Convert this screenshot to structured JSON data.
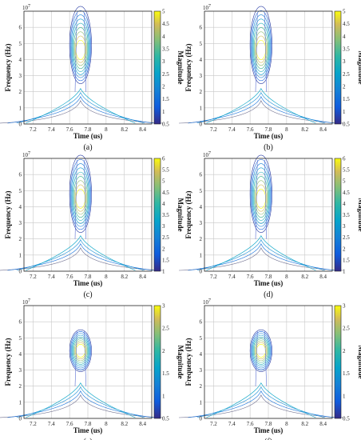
{
  "chart_data": [
    {
      "type": "contour",
      "panel": "(a)",
      "xlabel": "Time (us)",
      "ylabel": "Frequency (Hz)",
      "y_exponent": "10",
      "y_exponent_power": "7",
      "colorbar_label": "Magnitude",
      "x_ticks": [
        "7.2",
        "7.4",
        "7.6",
        "7.8",
        "8",
        "8.2",
        "8.4"
      ],
      "y_ticks": [
        "0",
        "1",
        "2",
        "3",
        "4",
        "5",
        "6"
      ],
      "xlim": [
        7.1,
        8.5
      ],
      "ylim": [
        0,
        7
      ],
      "cbar_ticks": [
        "0.5",
        "1",
        "1.5",
        "2",
        "2.5",
        "3",
        "3.5",
        "4",
        "4.5",
        "5"
      ],
      "cbar_range": [
        0.5,
        5
      ],
      "peak": {
        "t": 7.72,
        "f": 4.6,
        "magnitude": 5
      },
      "grid": true
    },
    {
      "type": "contour",
      "panel": "(b)",
      "xlabel": "Time (us)",
      "ylabel": "Frequency (Hz)",
      "y_exponent": "10",
      "y_exponent_power": "7",
      "colorbar_label": "Magnitude",
      "x_ticks": [
        "7.2",
        "7.4",
        "7.6",
        "7.8",
        "8",
        "8.2",
        "8.4"
      ],
      "y_ticks": [
        "0",
        "1",
        "2",
        "3",
        "4",
        "5",
        "6"
      ],
      "xlim": [
        7.1,
        8.5
      ],
      "ylim": [
        0,
        7
      ],
      "cbar_ticks": [
        "0.5",
        "1",
        "1.5",
        "2",
        "2.5",
        "3",
        "3.5",
        "4",
        "4.5",
        "5"
      ],
      "cbar_range": [
        0.5,
        5
      ],
      "peak": {
        "t": 7.72,
        "f": 4.6,
        "magnitude": 5
      },
      "grid": true
    },
    {
      "type": "contour",
      "panel": "(c)",
      "xlabel": "Time (us)",
      "ylabel": "Frequency (Hz)",
      "y_exponent": "10",
      "y_exponent_power": "7",
      "colorbar_label": "Magnitude",
      "x_ticks": [
        "7.2",
        "7.4",
        "7.6",
        "7.8",
        "8",
        "8.2",
        "8.4"
      ],
      "y_ticks": [
        "0",
        "1",
        "2",
        "3",
        "4",
        "5",
        "6"
      ],
      "xlim": [
        7.1,
        8.5
      ],
      "ylim": [
        0,
        7
      ],
      "cbar_ticks": [
        "1",
        "1.5",
        "2",
        "2.5",
        "3",
        "3.5",
        "4",
        "4.5",
        "5",
        "5.5",
        "6"
      ],
      "cbar_range": [
        1,
        6
      ],
      "peak": {
        "t": 7.72,
        "f": 4.5,
        "magnitude": 6
      },
      "grid": true
    },
    {
      "type": "contour",
      "panel": "(d)",
      "xlabel": "Time (us)",
      "ylabel": "Frequency (Hz)",
      "y_exponent": "10",
      "y_exponent_power": "7",
      "colorbar_label": "Magnitude",
      "x_ticks": [
        "7.2",
        "7.4",
        "7.6",
        "7.8",
        "8",
        "8.2",
        "8.4"
      ],
      "y_ticks": [
        "0",
        "1",
        "2",
        "3",
        "4",
        "5",
        "6"
      ],
      "xlim": [
        7.1,
        8.5
      ],
      "ylim": [
        0,
        7
      ],
      "cbar_ticks": [
        "1",
        "1.5",
        "2",
        "2.5",
        "3",
        "3.5",
        "4",
        "4.5",
        "5",
        "5.5",
        "6"
      ],
      "cbar_range": [
        1,
        6
      ],
      "peak": {
        "t": 7.72,
        "f": 4.5,
        "magnitude": 6
      },
      "grid": true
    },
    {
      "type": "contour",
      "panel": "(e)",
      "xlabel": "Time (us)",
      "ylabel": "Frequency (Hz)",
      "y_exponent": "10",
      "y_exponent_power": "7",
      "colorbar_label": "Magnitude",
      "x_ticks": [
        "7.2",
        "7.4",
        "7.6",
        "7.8",
        "8",
        "8.2",
        "8.4"
      ],
      "y_ticks": [
        "0",
        "1",
        "2",
        "3",
        "4",
        "5",
        "6"
      ],
      "xlim": [
        7.1,
        8.5
      ],
      "ylim": [
        0,
        7
      ],
      "cbar_ticks": [
        "0.5",
        "1",
        "1.5",
        "2",
        "2.5",
        "3"
      ],
      "cbar_range": [
        0.5,
        3
      ],
      "peak": {
        "t": 7.72,
        "f": 4.2,
        "magnitude": 3
      },
      "grid": true
    },
    {
      "type": "contour",
      "panel": "(f)",
      "xlabel": "Time (us)",
      "ylabel": "Frequency (Hz)",
      "y_exponent": "10",
      "y_exponent_power": "7",
      "colorbar_label": "Magnitude",
      "x_ticks": [
        "7.2",
        "7.4",
        "7.6",
        "7.8",
        "8",
        "8.2",
        "8.4"
      ],
      "y_ticks": [
        "0",
        "1",
        "2",
        "3",
        "4",
        "5",
        "6"
      ],
      "xlim": [
        7.1,
        8.5
      ],
      "ylim": [
        0,
        7
      ],
      "cbar_ticks": [
        "0.5",
        "1",
        "1.5",
        "2",
        "2.5",
        "3"
      ],
      "cbar_range": [
        0.5,
        3
      ],
      "peak": {
        "t": 7.72,
        "f": 4.2,
        "magnitude": 3
      },
      "grid": true
    }
  ]
}
